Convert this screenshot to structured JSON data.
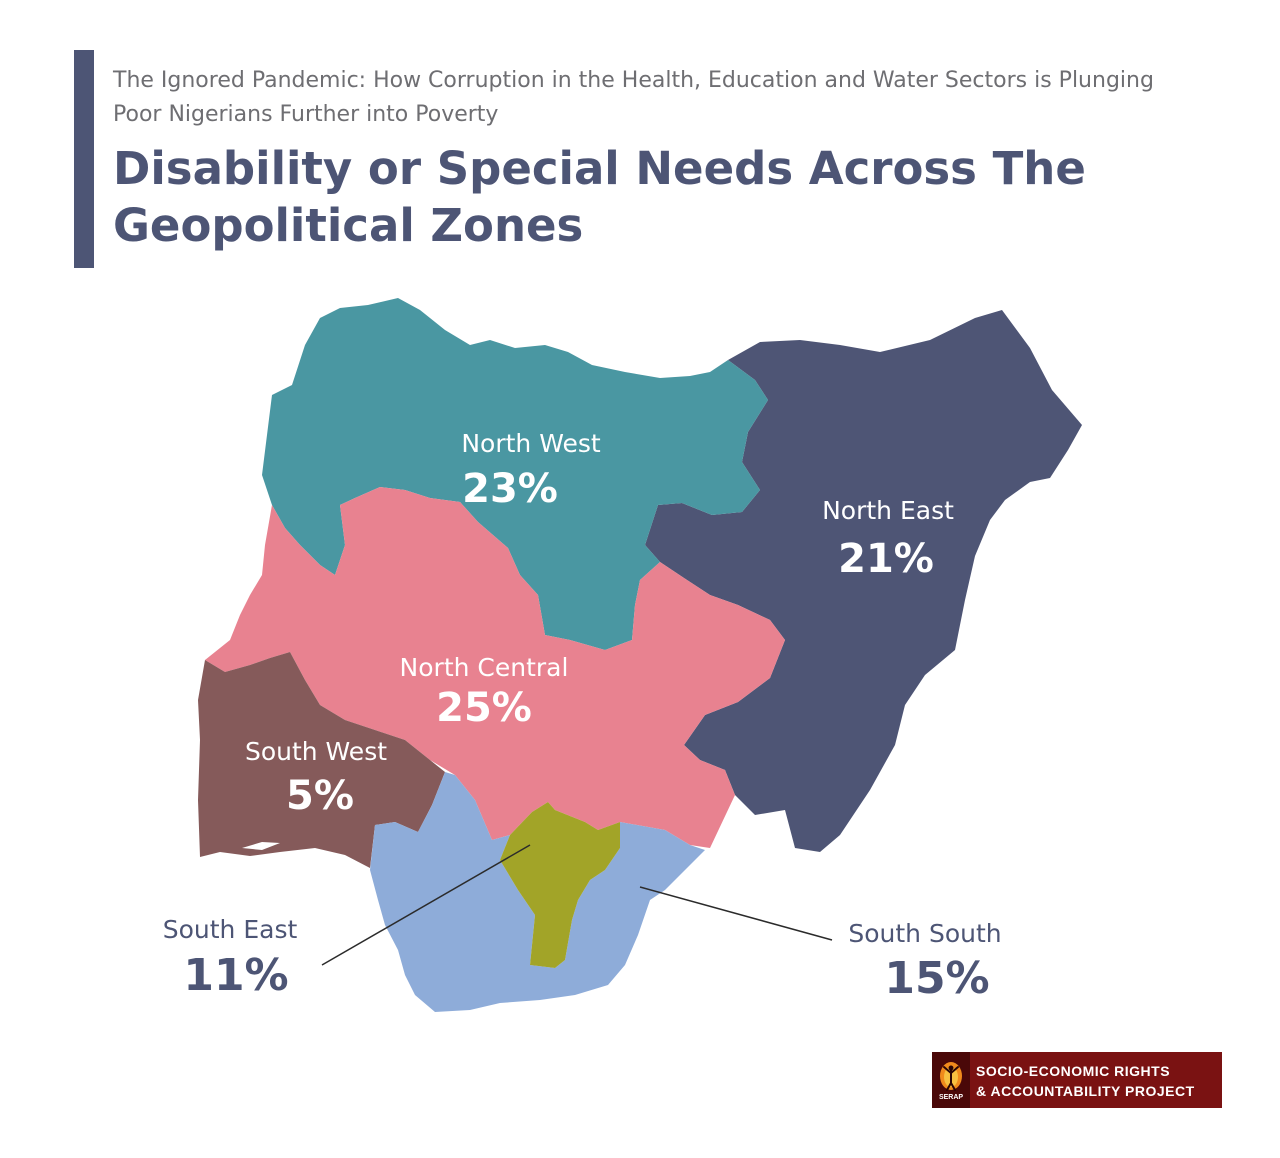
{
  "header": {
    "kicker": "The Ignored Pandemic: How Corruption in the Health, Education and Water Sectors is Plunging Poor Nigerians Further into Poverty",
    "title": "Disability or Special Needs Across The Geopolitical Zones"
  },
  "zones": {
    "north_west": {
      "name": "North West",
      "value": "23%",
      "color": "#4a97a2"
    },
    "north_east": {
      "name": "North East",
      "value": "21%",
      "color": "#4e5575"
    },
    "north_central": {
      "name": "North Central",
      "value": "25%",
      "color": "#e88290"
    },
    "south_west": {
      "name": "South West",
      "value": "5%",
      "color": "#855a5a"
    },
    "south_east": {
      "name": "South East",
      "value": "11%",
      "color": "#a2a428"
    },
    "south_south": {
      "name": "South South",
      "value": "15%",
      "color": "#8eacd9"
    }
  },
  "colors": {
    "heading": "#4d5575",
    "kicker": "#6e6e72",
    "label_on_map": "#ffffff"
  },
  "logo": {
    "line1": "SOCIO-ECONOMIC RIGHTS",
    "line2": "& ACCOUNTABILITY PROJECT",
    "emblem_text": "SERAP",
    "background": "#7a1212"
  }
}
